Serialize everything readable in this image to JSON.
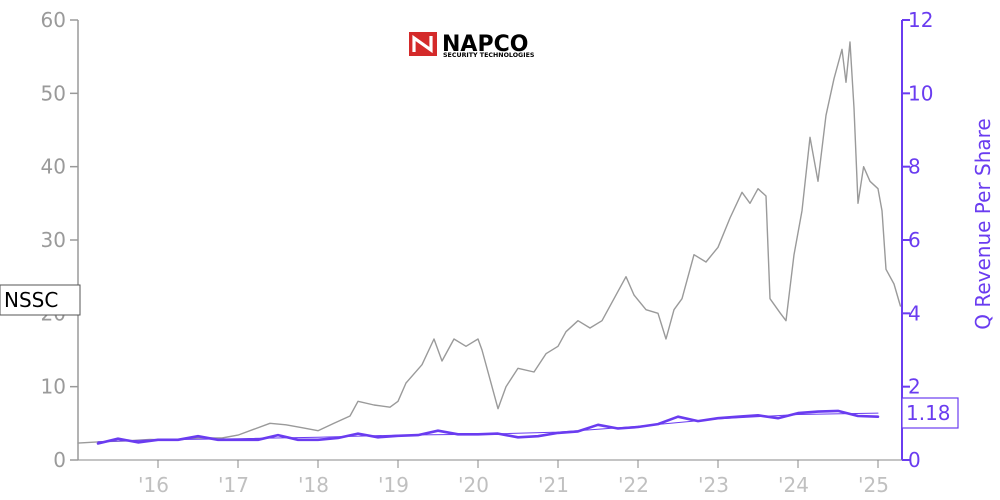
{
  "logo": {
    "name": "NAPCO",
    "subtitle": "SECURITY TECHNOLOGIES"
  },
  "chart_data": {
    "type": "line",
    "ticker": "NSSC",
    "ylabel_right": "Q Revenue Per Share",
    "ylim_left": [
      0,
      60
    ],
    "ylim_right": [
      0,
      12
    ],
    "yticks_left": [
      0,
      10,
      20,
      30,
      40,
      50,
      60
    ],
    "yticks_right": [
      0,
      2,
      4,
      6,
      8,
      10,
      12
    ],
    "xlim": [
      2015.0,
      2025.3
    ],
    "xticks": [
      {
        "label": "'16",
        "x": 2016.0
      },
      {
        "label": "'17",
        "x": 2017.0
      },
      {
        "label": "'18",
        "x": 2018.0
      },
      {
        "label": "'19",
        "x": 2019.0
      },
      {
        "label": "'20",
        "x": 2020.0
      },
      {
        "label": "'21",
        "x": 2021.0
      },
      {
        "label": "'22",
        "x": 2022.0
      },
      {
        "label": "'23",
        "x": 2023.0
      },
      {
        "label": "'24",
        "x": 2024.0
      },
      {
        "label": "'25",
        "x": 2025.0
      }
    ],
    "latest_revenue_label": "1.18",
    "colors": {
      "price": "#9a9a9a",
      "revenue": "#6a3cf0",
      "left_axis": "#9a9a9a",
      "right_axis": "#6a3cf0"
    },
    "series": [
      {
        "name": "NSSC",
        "axis": "left",
        "points": [
          [
            2015.0,
            2.3
          ],
          [
            2015.3,
            2.5
          ],
          [
            2015.6,
            2.6
          ],
          [
            2015.9,
            2.8
          ],
          [
            2016.2,
            2.7
          ],
          [
            2016.5,
            3.0
          ],
          [
            2016.8,
            3.0
          ],
          [
            2017.0,
            3.4
          ],
          [
            2017.2,
            4.2
          ],
          [
            2017.4,
            5.0
          ],
          [
            2017.6,
            4.8
          ],
          [
            2017.8,
            4.4
          ],
          [
            2018.0,
            4.0
          ],
          [
            2018.2,
            5.0
          ],
          [
            2018.4,
            6.0
          ],
          [
            2018.5,
            8.0
          ],
          [
            2018.7,
            7.5
          ],
          [
            2018.9,
            7.2
          ],
          [
            2019.0,
            8.0
          ],
          [
            2019.1,
            10.5
          ],
          [
            2019.3,
            13.0
          ],
          [
            2019.45,
            16.5
          ],
          [
            2019.55,
            13.5
          ],
          [
            2019.7,
            16.5
          ],
          [
            2019.85,
            15.5
          ],
          [
            2020.0,
            16.5
          ],
          [
            2020.05,
            15.0
          ],
          [
            2020.15,
            11.0
          ],
          [
            2020.25,
            7.0
          ],
          [
            2020.35,
            10.0
          ],
          [
            2020.5,
            12.5
          ],
          [
            2020.7,
            12.0
          ],
          [
            2020.85,
            14.5
          ],
          [
            2021.0,
            15.5
          ],
          [
            2021.1,
            17.5
          ],
          [
            2021.25,
            19.0
          ],
          [
            2021.4,
            18.0
          ],
          [
            2021.55,
            19.0
          ],
          [
            2021.7,
            22.0
          ],
          [
            2021.85,
            25.0
          ],
          [
            2021.95,
            22.5
          ],
          [
            2022.1,
            20.5
          ],
          [
            2022.25,
            20.0
          ],
          [
            2022.35,
            16.5
          ],
          [
            2022.45,
            20.5
          ],
          [
            2022.55,
            22.0
          ],
          [
            2022.7,
            28.0
          ],
          [
            2022.85,
            27.0
          ],
          [
            2023.0,
            29.0
          ],
          [
            2023.15,
            33.0
          ],
          [
            2023.3,
            36.5
          ],
          [
            2023.4,
            35.0
          ],
          [
            2023.5,
            37.0
          ],
          [
            2023.6,
            36.0
          ],
          [
            2023.65,
            22.0
          ],
          [
            2023.78,
            20.0
          ],
          [
            2023.85,
            19.0
          ],
          [
            2023.95,
            28.0
          ],
          [
            2024.05,
            34.0
          ],
          [
            2024.15,
            44.0
          ],
          [
            2024.25,
            38.0
          ],
          [
            2024.35,
            47.0
          ],
          [
            2024.45,
            52.0
          ],
          [
            2024.55,
            56.0
          ],
          [
            2024.6,
            51.5
          ],
          [
            2024.65,
            57.0
          ],
          [
            2024.7,
            48.0
          ],
          [
            2024.75,
            35.0
          ],
          [
            2024.82,
            40.0
          ],
          [
            2024.9,
            38.0
          ],
          [
            2025.0,
            37.0
          ],
          [
            2025.05,
            34.0
          ],
          [
            2025.1,
            26.0
          ],
          [
            2025.2,
            24.0
          ],
          [
            2025.28,
            21.0
          ]
        ]
      },
      {
        "name": "Q Revenue Per Share",
        "axis": "right",
        "points": [
          [
            2015.25,
            0.45
          ],
          [
            2015.5,
            0.58
          ],
          [
            2015.75,
            0.48
          ],
          [
            2016.0,
            0.55
          ],
          [
            2016.25,
            0.55
          ],
          [
            2016.5,
            0.65
          ],
          [
            2016.75,
            0.55
          ],
          [
            2017.0,
            0.55
          ],
          [
            2017.25,
            0.55
          ],
          [
            2017.5,
            0.68
          ],
          [
            2017.75,
            0.55
          ],
          [
            2018.0,
            0.55
          ],
          [
            2018.25,
            0.6
          ],
          [
            2018.5,
            0.72
          ],
          [
            2018.75,
            0.62
          ],
          [
            2019.0,
            0.66
          ],
          [
            2019.25,
            0.68
          ],
          [
            2019.5,
            0.8
          ],
          [
            2019.75,
            0.7
          ],
          [
            2020.0,
            0.7
          ],
          [
            2020.25,
            0.72
          ],
          [
            2020.5,
            0.62
          ],
          [
            2020.75,
            0.65
          ],
          [
            2021.0,
            0.74
          ],
          [
            2021.25,
            0.78
          ],
          [
            2021.5,
            0.96
          ],
          [
            2021.75,
            0.86
          ],
          [
            2022.0,
            0.9
          ],
          [
            2022.25,
            0.98
          ],
          [
            2022.5,
            1.18
          ],
          [
            2022.75,
            1.06
          ],
          [
            2023.0,
            1.14
          ],
          [
            2023.25,
            1.18
          ],
          [
            2023.5,
            1.22
          ],
          [
            2023.75,
            1.14
          ],
          [
            2024.0,
            1.28
          ],
          [
            2024.25,
            1.32
          ],
          [
            2024.5,
            1.34
          ],
          [
            2024.75,
            1.2
          ],
          [
            2025.0,
            1.18
          ]
        ]
      },
      {
        "name": "Revenue trend",
        "axis": "right",
        "points": [
          [
            2015.25,
            0.5
          ],
          [
            2016.0,
            0.55
          ],
          [
            2017.0,
            0.58
          ],
          [
            2018.0,
            0.62
          ],
          [
            2019.0,
            0.68
          ],
          [
            2020.0,
            0.7
          ],
          [
            2021.0,
            0.76
          ],
          [
            2022.0,
            0.92
          ],
          [
            2023.0,
            1.12
          ],
          [
            2024.0,
            1.24
          ],
          [
            2025.0,
            1.28
          ]
        ]
      }
    ]
  }
}
